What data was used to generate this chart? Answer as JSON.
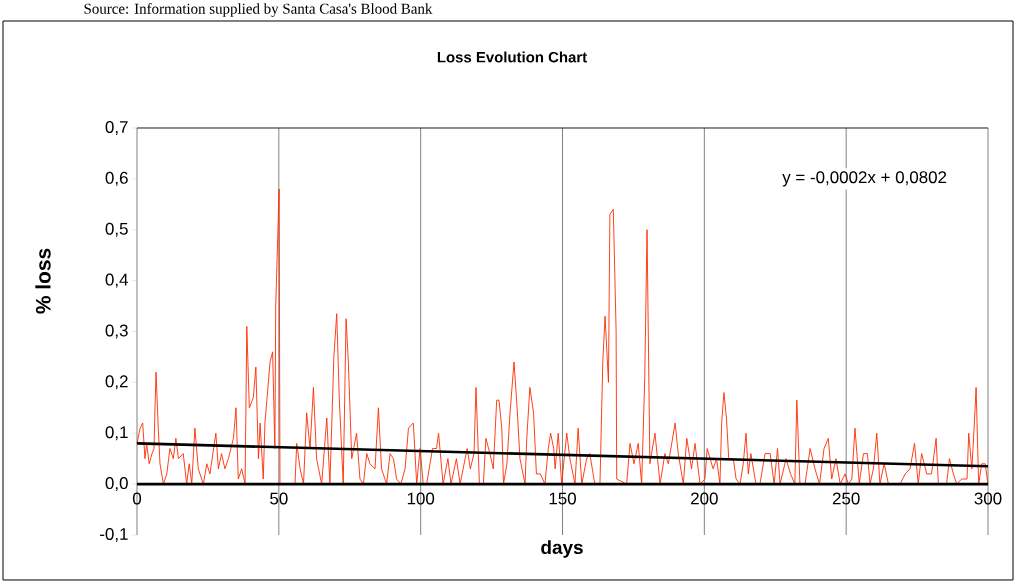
{
  "chart_data": {
    "type": "line",
    "title": "Loss Evolution Chart",
    "xlabel": "days",
    "ylabel": "% loss",
    "annotations": [
      "Source: Information supplied by Santa Casa's Blood Bank",
      "y = -0,0002x + 0,0802"
    ],
    "series": [
      {
        "color": "#ff2a00",
        "x": [
          0,
          1.1,
          2.0,
          2.8,
          3.4,
          4.3,
          5.3,
          6.0,
          6.3,
          6.7,
          7.5,
          8.1,
          9.3,
          10.5,
          11.6,
          12.8,
          13.7,
          14.6,
          16.3,
          17.5,
          18.4,
          19.3,
          20.4,
          21.6,
          23.4,
          24.6,
          25.7,
          27.8,
          28.7,
          29.8,
          31.0,
          32.2,
          34.0,
          34.9,
          35.7,
          36.9,
          38.1,
          38.7,
          39.6,
          41.0,
          41.9,
          42.8,
          43.4,
          44.5,
          45.1,
          46.9,
          47.8,
          48.6,
          48.9,
          50.1,
          50.4,
          55.7,
          56.3,
          57.5,
          58.7,
          59.8,
          61.0,
          62.2,
          63.3,
          65.1,
          66.9,
          68.0,
          69.4,
          70.4,
          71.3,
          72.7,
          73.7,
          74.5,
          75.7,
          77.4,
          78.6,
          79.8,
          81.0,
          82.1,
          83.9,
          85.1,
          86.2,
          88.0,
          89.2,
          90.4,
          91.5,
          93.0,
          94.5,
          95.7,
          97.4,
          98.6,
          99.8,
          100.9,
          102.1,
          104.2,
          105.6,
          106.3,
          107.9,
          109.6,
          110.7,
          112.6,
          113.9,
          116.4,
          117.5,
          118.8,
          119.5,
          120.7,
          122.1,
          123.0,
          124.4,
          125.6,
          126.8,
          127.6,
          128.6,
          129.2,
          130.4,
          131.5,
          132.9,
          134.0,
          135.0,
          136.8,
          137.4,
          138.5,
          139.8,
          140.8,
          142.2,
          143.8,
          145.0,
          145.8,
          146.9,
          147.4,
          148.5,
          149.7,
          151.5,
          152.6,
          154.4,
          155.5,
          156.8,
          158.5,
          159.6,
          161.4,
          163.2,
          164.2,
          165.0,
          166.2,
          166.7,
          167.9,
          168.9,
          169.1,
          172.6,
          173.8,
          175.2,
          176.7,
          177.9,
          179.0,
          179.8,
          180.8,
          182.6,
          184.4,
          186.1,
          187.3,
          189.7,
          190.8,
          192.6,
          193.8,
          195.5,
          196.7,
          198.5,
          200.2,
          201.0,
          203.1,
          204.3,
          205.5,
          206.1,
          206.9,
          207.8,
          208.6,
          210.2,
          211.2,
          212.6,
          213.7,
          214.7,
          215.5,
          216.4,
          218.2,
          219.6,
          221.4,
          223.2,
          224.6,
          225.8,
          226.7,
          228.8,
          230.4,
          231.9,
          232.6,
          233.7,
          235.5,
          237.3,
          239.0,
          240.6,
          242.2,
          243.7,
          244.9,
          246.4,
          247.9,
          249.6,
          250.8,
          252.0,
          253.1,
          254.6,
          256.1,
          257.5,
          258.4,
          259.6,
          260.8,
          261.9,
          263.4,
          264.9,
          269.0,
          270.8,
          272.5,
          274.1,
          275.4,
          276.6,
          278.4,
          280.1,
          281.7,
          282.5,
          285.4,
          286.4,
          287.8,
          289.0,
          290.7,
          292.6,
          293.2,
          294.3,
          295.1,
          295.8,
          296.7,
          297.8,
          299.0,
          300
        ],
        "values": [
          0.08,
          0.11,
          0.12,
          0.05,
          0.08,
          0.04,
          0.06,
          0.07,
          0.14,
          0.22,
          0.11,
          0.04,
          0.0,
          0.02,
          0.07,
          0.05,
          0.09,
          0.05,
          0.06,
          0.0,
          0.04,
          0.0,
          0.11,
          0.03,
          0.0,
          0.04,
          0.02,
          0.1,
          0.03,
          0.06,
          0.03,
          0.05,
          0.09,
          0.15,
          0.01,
          0.03,
          0.0,
          0.31,
          0.15,
          0.17,
          0.23,
          0.05,
          0.12,
          0.01,
          0.12,
          0.24,
          0.26,
          0.07,
          0.35,
          0.58,
          0.0,
          0.0,
          0.08,
          0.03,
          0.0,
          0.14,
          0.07,
          0.19,
          0.05,
          0.0,
          0.13,
          0.0,
          0.25,
          0.335,
          0.17,
          0.0,
          0.325,
          0.24,
          0.05,
          0.1,
          0.01,
          0.0,
          0.06,
          0.04,
          0.03,
          0.15,
          0.03,
          0.0,
          0.06,
          0.05,
          0.01,
          0.0,
          0.03,
          0.11,
          0.12,
          0.0,
          0.07,
          0.0,
          0.0,
          0.07,
          0.07,
          0.1,
          0.0,
          0.05,
          0.0,
          0.05,
          0.0,
          0.07,
          0.03,
          0.06,
          0.19,
          0.0,
          0.0,
          0.09,
          0.06,
          0.03,
          0.165,
          0.165,
          0.11,
          0.0,
          0.04,
          0.14,
          0.24,
          0.15,
          0.05,
          0.0,
          0.09,
          0.19,
          0.14,
          0.02,
          0.02,
          0.0,
          0.07,
          0.1,
          0.07,
          0.03,
          0.1,
          0.0,
          0.1,
          0.05,
          0.0,
          0.11,
          0.0,
          0.05,
          0.06,
          0.0,
          0.0,
          0.24,
          0.33,
          0.2,
          0.53,
          0.54,
          0.3,
          0.01,
          0.0,
          0.08,
          0.04,
          0.08,
          0.0,
          0.21,
          0.5,
          0.04,
          0.1,
          0.0,
          0.06,
          0.04,
          0.12,
          0.06,
          0.0,
          0.09,
          0.03,
          0.08,
          0.0,
          0.01,
          0.07,
          0.03,
          0.05,
          0.0,
          0.12,
          0.18,
          0.13,
          0.05,
          0.05,
          0.01,
          0.0,
          0.04,
          0.1,
          0.02,
          0.06,
          0.0,
          0.0,
          0.06,
          0.06,
          0.0,
          0.07,
          0.0,
          0.05,
          0.02,
          0.0,
          0.165,
          0.0,
          0.0,
          0.07,
          0.03,
          0.0,
          0.07,
          0.09,
          0.01,
          0.05,
          0.0,
          0.02,
          0.0,
          0.01,
          0.11,
          0.0,
          0.06,
          0.06,
          0.0,
          0.03,
          0.1,
          0.0,
          0.04,
          0.0,
          0.0,
          0.02,
          0.03,
          0.08,
          0.0,
          0.06,
          0.02,
          0.02,
          0.09,
          0.0,
          0.0,
          0.05,
          0.02,
          0.0,
          0.01,
          0.01,
          0.1,
          0.03,
          0.11,
          0.19,
          0.0,
          0.04,
          0.04,
          0.0
        ]
      },
      {
        "type": "line",
        "color": "#000000",
        "x": [
          0,
          300
        ],
        "values": [
          0.08,
          0.035
        ]
      }
    ],
    "xlim": [
      0,
      300
    ],
    "ylim": [
      -0.1,
      0.7
    ],
    "xticks": [
      0,
      50,
      100,
      150,
      200,
      250,
      300
    ],
    "yticks": [
      {
        "value": -0.1,
        "label": "-0,1"
      },
      {
        "value": 0,
        "label": "0,0"
      },
      {
        "value": 0.1,
        "label": "0,1"
      },
      {
        "value": 0.2,
        "label": "0,2"
      },
      {
        "value": 0.3,
        "label": "0,3"
      },
      {
        "value": 0.4,
        "label": "0,4"
      },
      {
        "value": 0.5,
        "label": "0,5"
      },
      {
        "value": 0.6,
        "label": "0,6"
      },
      {
        "value": 0.7,
        "label": "0,7"
      }
    ],
    "grid": "x"
  }
}
